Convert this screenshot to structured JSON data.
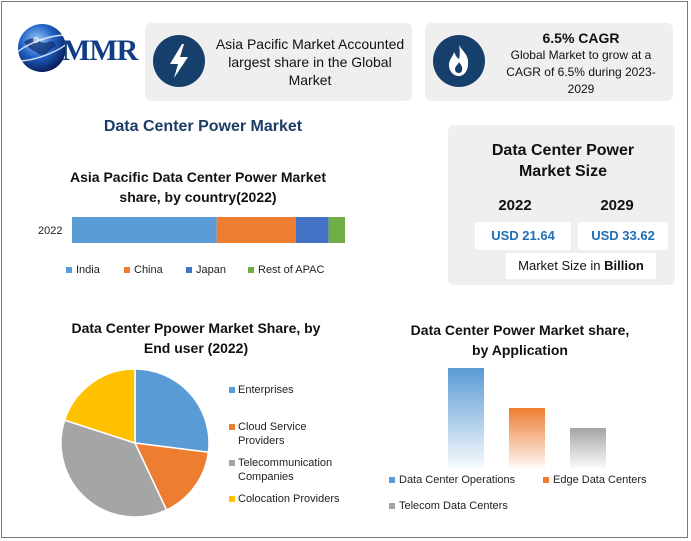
{
  "brand": {
    "logo_text": "MMR"
  },
  "highlights": {
    "asia": {
      "text": "Asia Pacific Market Accounted largest share in the Global Market"
    },
    "cagr": {
      "title": "6.5% CAGR",
      "text": "Global Market to grow at a CAGR of 6.5% during 2023-2029"
    }
  },
  "main_title": "Data Center Power Market",
  "market_size": {
    "title": "Data Center Power Market Size",
    "years": [
      "2022",
      "2029"
    ],
    "values": [
      "USD 21.64",
      "USD 33.62"
    ],
    "unit_prefix": "Market Size in ",
    "unit_bold": "Billion"
  },
  "colors": {
    "india": "#5b9bd5",
    "china": "#ed7d31",
    "japan": "#4472c4",
    "rest": "#70ad47",
    "enterprises": "#5b9bd5",
    "cloud": "#ed7d31",
    "telecom": "#a5a5a5",
    "colocation": "#ffc000"
  },
  "chart_data": [
    {
      "type": "bar",
      "orientation": "horizontal-stacked",
      "title": "Asia Pacific Data Center Power Market share, by country(2022)",
      "categories": [
        "2022"
      ],
      "series": [
        {
          "name": "India",
          "values": [
            53
          ],
          "color": "#5b9bd5"
        },
        {
          "name": "China",
          "values": [
            29
          ],
          "color": "#ed7d31"
        },
        {
          "name": "Japan",
          "values": [
            12
          ],
          "color": "#4472c4"
        },
        {
          "name": "Rest of APAC",
          "values": [
            6
          ],
          "color": "#70ad47"
        }
      ],
      "legend": "bottom"
    },
    {
      "type": "pie",
      "title": "Data Center Ppower Market Share, by End user (2022)",
      "labels": [
        "Enterprises",
        "Cloud Service Providers",
        "Telecommunication Companies",
        "Colocation Providers"
      ],
      "values": [
        27,
        16,
        37,
        20
      ],
      "colors": [
        "#5b9bd5",
        "#ed7d31",
        "#a5a5a5",
        "#ffc000"
      ],
      "legend": "right"
    },
    {
      "type": "bar",
      "title": "Data Center Power Market share, by Application",
      "categories": [
        "Data Center Operations",
        "Edge Data Centers",
        "Telecom Data Centers"
      ],
      "values": [
        100,
        60,
        40
      ],
      "colors": [
        "#5b9bd5",
        "#ed7d31",
        "#a5a5a5"
      ],
      "legend": "bottom"
    }
  ]
}
